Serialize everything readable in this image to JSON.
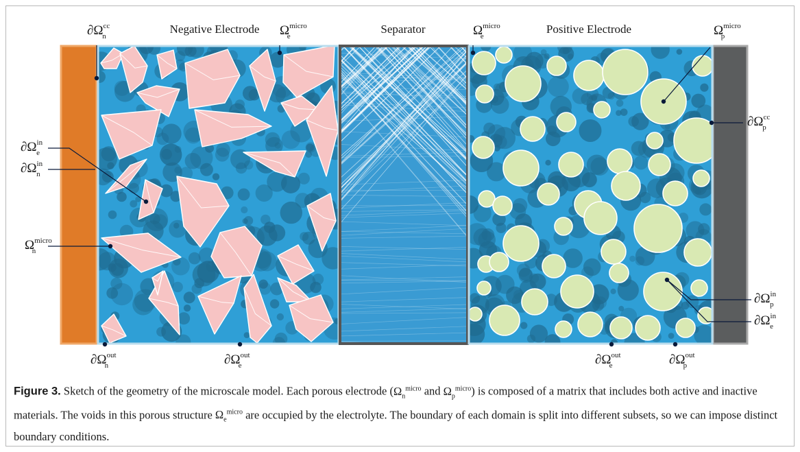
{
  "diagram": {
    "region_labels": {
      "negative_electrode": "Negative Electrode",
      "separator": "Separator",
      "positive_electrode": "Positive Electrode"
    },
    "symbols": {
      "n_cc": {
        "base": "∂Ω",
        "sup": "cc",
        "sub": "n"
      },
      "e_micro_1": {
        "base": "Ω",
        "sup": "micro",
        "sub": "e"
      },
      "e_micro_2": {
        "base": "Ω",
        "sup": "micro",
        "sub": "e"
      },
      "p_micro": {
        "base": "Ω",
        "sup": "micro",
        "sub": "p"
      },
      "e_in_left": {
        "base": "∂Ω",
        "sup": "in",
        "sub": "e"
      },
      "n_in": {
        "base": "∂Ω",
        "sup": "in",
        "sub": "n"
      },
      "n_micro": {
        "base": "Ω",
        "sup": "micro",
        "sub": "n"
      },
      "p_cc": {
        "base": "∂Ω",
        "sup": "cc",
        "sub": "p"
      },
      "p_in": {
        "base": "∂Ω",
        "sup": "in",
        "sub": "p"
      },
      "e_in_right": {
        "base": "∂Ω",
        "sup": "in",
        "sub": "e"
      },
      "n_out": {
        "base": "∂Ω",
        "sup": "out",
        "sub": "n"
      },
      "e_out_1": {
        "base": "∂Ω",
        "sup": "out",
        "sub": "e"
      },
      "e_out_2": {
        "base": "∂Ω",
        "sup": "out",
        "sub": "e"
      },
      "p_out": {
        "base": "∂Ω",
        "sup": "out",
        "sub": "p"
      }
    },
    "colors": {
      "negative_current_collector": "#e07b28",
      "positive_current_collector": "#5b5d5e",
      "electrolyte": "#2f9fd6",
      "pore_matrix": "#1f6a8f",
      "negative_particles": "#f7c4c4",
      "positive_particles": "#d9e9b3",
      "separator_border": "#555555",
      "boundary_outline": "#b9dced",
      "leader_line": "#0a1a3a"
    }
  },
  "caption": {
    "label": "Figure 3.",
    "text_1": " Sketch of the geometry of the microscale model. Each porous electrode (",
    "sym_n": {
      "base": "Ω",
      "sup": "micro",
      "sub": "n"
    },
    "text_and": " and ",
    "sym_p": {
      "base": "Ω",
      "sup": "micro",
      "sub": "p"
    },
    "text_2": ") is composed of a matrix that includes both active and inactive materials. The voids in this porous structure ",
    "sym_e": {
      "base": "Ω",
      "sup": "micro",
      "sub": "e"
    },
    "text_3": " are occupied by the electrolyte. The boundary of each domain is split into different subsets, so we can impose distinct boundary conditions."
  }
}
